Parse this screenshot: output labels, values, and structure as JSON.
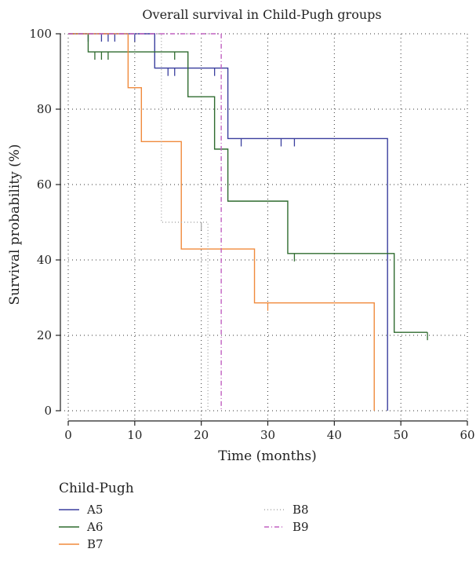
{
  "chart_data": {
    "type": "line",
    "subtype": "kaplan-meier step",
    "title": "Overall survival in Child-Pugh groups",
    "xlabel": "Time (months)",
    "ylabel": "Survival probability (%)",
    "xlim": [
      0,
      60
    ],
    "ylim": [
      0,
      100
    ],
    "xticks": [
      "0",
      "10",
      "20",
      "30",
      "40",
      "50",
      "60"
    ],
    "yticks": [
      "0",
      "20",
      "40",
      "60",
      "80",
      "100"
    ],
    "grid": "dotted",
    "legend_title": "Child-Pugh",
    "legend_position": "bottom",
    "series": [
      {
        "name": "A5",
        "color": "#3a3f9e",
        "dash": "solid",
        "steps": [
          [
            0,
            100
          ],
          [
            13,
            100
          ],
          [
            13,
            90.9
          ],
          [
            24,
            90.9
          ],
          [
            24,
            72.2
          ],
          [
            48,
            72.2
          ],
          [
            48,
            0
          ]
        ],
        "censored": [
          [
            3,
            100
          ],
          [
            5,
            100
          ],
          [
            6,
            100
          ],
          [
            7,
            100
          ],
          [
            10,
            100
          ],
          [
            15,
            90.9
          ],
          [
            16,
            90.9
          ],
          [
            22,
            90.9
          ],
          [
            26,
            72.2
          ],
          [
            32,
            72.2
          ],
          [
            34,
            72.2
          ]
        ]
      },
      {
        "name": "A6",
        "color": "#2f6b2f",
        "dash": "solid",
        "steps": [
          [
            0,
            100
          ],
          [
            3,
            100
          ],
          [
            3,
            95.2
          ],
          [
            18,
            95.2
          ],
          [
            18,
            83.3
          ],
          [
            22,
            83.3
          ],
          [
            22,
            69.4
          ],
          [
            24,
            69.4
          ],
          [
            24,
            55.6
          ],
          [
            33,
            55.6
          ],
          [
            33,
            41.7
          ],
          [
            49,
            41.7
          ],
          [
            49,
            20.8
          ],
          [
            54,
            20.8
          ]
        ],
        "censored": [
          [
            4,
            95.2
          ],
          [
            5,
            95.2
          ],
          [
            6,
            95.2
          ],
          [
            16,
            95.2
          ],
          [
            34,
            41.7
          ],
          [
            54,
            20.8
          ]
        ]
      },
      {
        "name": "B7",
        "color": "#f08a3c",
        "dash": "solid",
        "steps": [
          [
            0,
            100
          ],
          [
            9,
            100
          ],
          [
            9,
            85.7
          ],
          [
            11,
            85.7
          ],
          [
            11,
            71.4
          ],
          [
            17,
            71.4
          ],
          [
            17,
            42.9
          ],
          [
            28,
            42.9
          ],
          [
            28,
            28.6
          ],
          [
            46,
            28.6
          ],
          [
            46,
            0
          ]
        ],
        "censored": [
          [
            30,
            28.6
          ]
        ]
      },
      {
        "name": "B8",
        "color": "#aaaaaa",
        "dash": "1,3",
        "steps": [
          [
            0,
            100
          ],
          [
            14,
            100
          ],
          [
            14,
            50
          ],
          [
            21,
            50
          ],
          [
            21,
            0
          ]
        ],
        "censored": [
          [
            20,
            50
          ]
        ]
      },
      {
        "name": "B9",
        "color": "#c060c0",
        "dash": "6,3,1,3",
        "steps": [
          [
            0,
            100
          ],
          [
            23,
            100
          ],
          [
            23,
            0
          ]
        ],
        "censored": []
      }
    ]
  }
}
